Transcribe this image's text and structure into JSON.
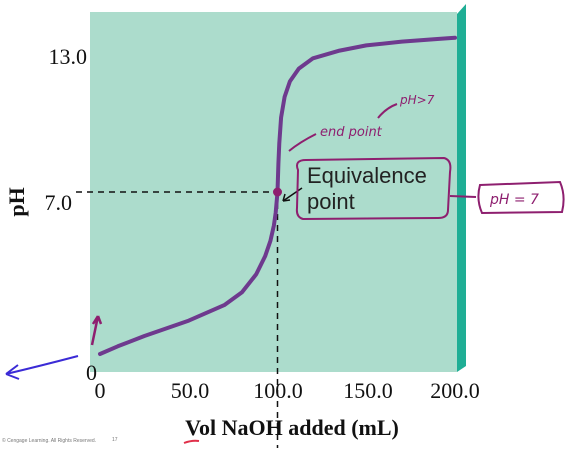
{
  "chart_data": {
    "type": "line",
    "xlabel": "Vol NaOH added (mL)",
    "ylabel": "pH",
    "xlim": [
      0,
      200
    ],
    "ylim": [
      0,
      14
    ],
    "x_ticks": [
      "0",
      "50.0",
      "100.0",
      "150.0",
      "200.0"
    ],
    "y_ticks": [
      "0",
      "7.0",
      "13.0"
    ],
    "grid": false,
    "series": [
      {
        "x": [
          0,
          10,
          25,
          50,
          70,
          80,
          88,
          93,
          96,
          98,
          99,
          99.5,
          100,
          100.5,
          101,
          102,
          104,
          107,
          112,
          120,
          135,
          150,
          170,
          190,
          200
        ],
        "y": [
          0.7,
          1.0,
          1.4,
          2.0,
          2.6,
          3.1,
          3.8,
          4.5,
          5.1,
          5.7,
          6.2,
          6.6,
          7.0,
          8.1,
          8.9,
          9.9,
          10.7,
          11.3,
          11.8,
          12.2,
          12.5,
          12.7,
          12.85,
          12.95,
          13.0
        ]
      }
    ],
    "equivalence_point": {
      "x": 100,
      "y": 7.0
    },
    "annotations": {
      "equivalence_label_line1": "Equivalence",
      "equivalence_label_line2": "point"
    }
  },
  "handwritten": {
    "end_point": "end point",
    "ph_gt_7": "pH>7",
    "ph_eq_7": "pH = 7"
  },
  "footer": {
    "copyright": "© Cengage Learning. All Rights Reserved.",
    "page_number": "17"
  },
  "colors": {
    "plot_bg": "#acdccc",
    "edge": "#1fae95",
    "curve": "#6e3a8e",
    "ink_purple": "#8e1f6f",
    "ink_blue": "#3b2bd6",
    "ink_red": "#e0304a"
  }
}
